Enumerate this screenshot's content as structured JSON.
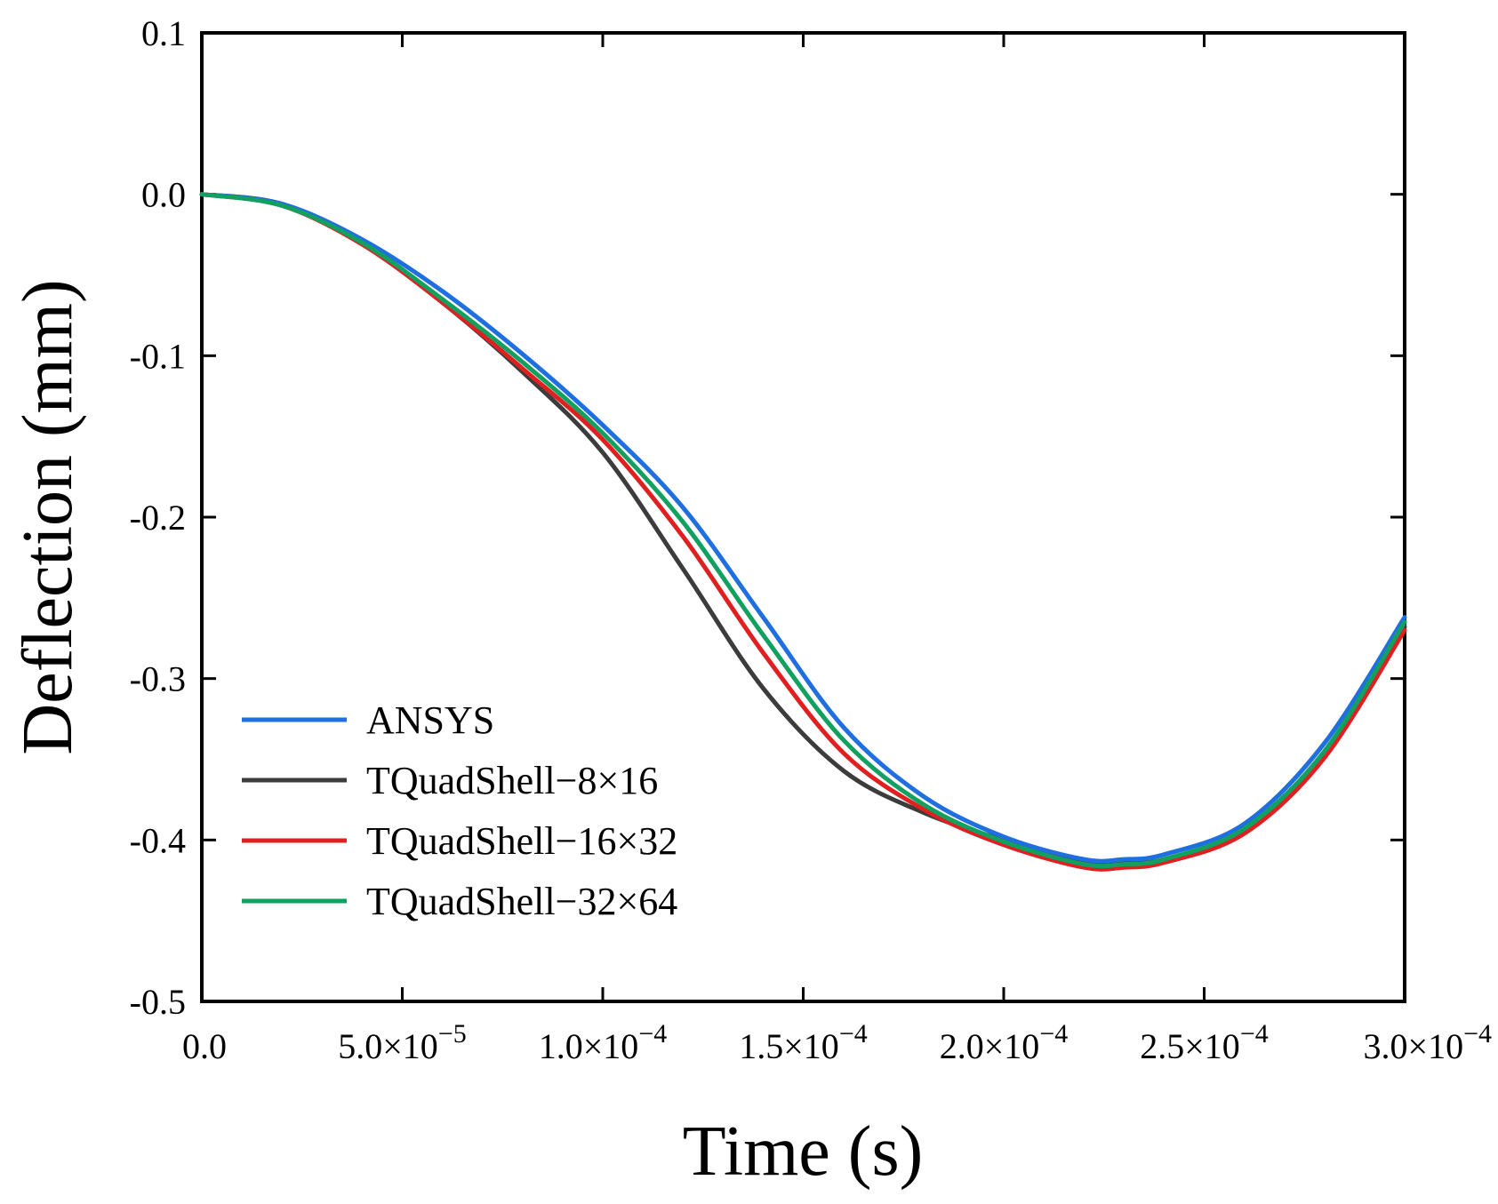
{
  "chart_data": {
    "type": "line",
    "title": "",
    "xlabel": "Time (s)",
    "ylabel": "Deflection (mm)",
    "xlim": [
      0,
      0.0003
    ],
    "ylim": [
      -0.5,
      0.1
    ],
    "legend_position": "lower-left",
    "x_ticks": [
      {
        "value": 0,
        "mantissa": "0.0",
        "exp": ""
      },
      {
        "value": 5e-05,
        "mantissa": "5.0×10",
        "exp": "−5"
      },
      {
        "value": 0.0001,
        "mantissa": "1.0×10",
        "exp": "−4"
      },
      {
        "value": 0.00015,
        "mantissa": "1.5×10",
        "exp": "−4"
      },
      {
        "value": 0.0002,
        "mantissa": "2.0×10",
        "exp": "−4"
      },
      {
        "value": 0.00025,
        "mantissa": "2.5×10",
        "exp": "−4"
      },
      {
        "value": 0.0003,
        "mantissa": "3.0×10",
        "exp": "−4"
      }
    ],
    "y_ticks": [
      {
        "value": 0.1,
        "label": "0.1"
      },
      {
        "value": 0.0,
        "label": "0.0"
      },
      {
        "value": -0.1,
        "label": "-0.1"
      },
      {
        "value": -0.2,
        "label": "-0.2"
      },
      {
        "value": -0.3,
        "label": "-0.3"
      },
      {
        "value": -0.4,
        "label": "-0.4"
      },
      {
        "value": -0.5,
        "label": "-0.5"
      }
    ],
    "x_unit": 1e-05,
    "series": [
      {
        "name": "ANSYS",
        "color": "#1f6fe0",
        "x": [
          0,
          2,
          4,
          6,
          8,
          10,
          12,
          14,
          16,
          18,
          20,
          22,
          23,
          24,
          26,
          28,
          30
        ],
        "y": [
          0,
          -0.006,
          -0.028,
          -0.06,
          -0.099,
          -0.143,
          -0.194,
          -0.262,
          -0.33,
          -0.373,
          -0.398,
          -0.412,
          -0.412,
          -0.409,
          -0.39,
          -0.34,
          -0.262
        ]
      },
      {
        "name": "TQuadShell−8×16",
        "color": "#3c3c3c",
        "x": [
          0,
          2,
          4,
          6,
          8,
          10,
          12,
          14,
          16,
          18,
          20,
          22,
          23,
          24,
          26,
          28,
          30
        ],
        "y": [
          0,
          -0.006,
          -0.03,
          -0.067,
          -0.11,
          -0.16,
          -0.232,
          -0.306,
          -0.357,
          -0.383,
          -0.4,
          -0.413,
          -0.414,
          -0.412,
          -0.394,
          -0.348,
          -0.268
        ]
      },
      {
        "name": "TQuadShell−16×32",
        "color": "#e02020",
        "x": [
          0,
          2,
          4,
          6,
          8,
          10,
          12,
          14,
          16,
          18,
          20,
          22,
          23,
          24,
          26,
          28,
          30
        ],
        "y": [
          0,
          -0.007,
          -0.031,
          -0.067,
          -0.108,
          -0.152,
          -0.212,
          -0.284,
          -0.346,
          -0.381,
          -0.403,
          -0.417,
          -0.417,
          -0.414,
          -0.396,
          -0.349,
          -0.27
        ]
      },
      {
        "name": "TQuadShell−32×64",
        "color": "#12a060",
        "x": [
          0,
          2,
          4,
          6,
          8,
          10,
          12,
          14,
          16,
          18,
          20,
          22,
          23,
          24,
          26,
          28,
          30
        ],
        "y": [
          0,
          -0.007,
          -0.03,
          -0.065,
          -0.104,
          -0.148,
          -0.203,
          -0.273,
          -0.338,
          -0.378,
          -0.401,
          -0.415,
          -0.415,
          -0.412,
          -0.393,
          -0.345,
          -0.265
        ]
      }
    ]
  }
}
